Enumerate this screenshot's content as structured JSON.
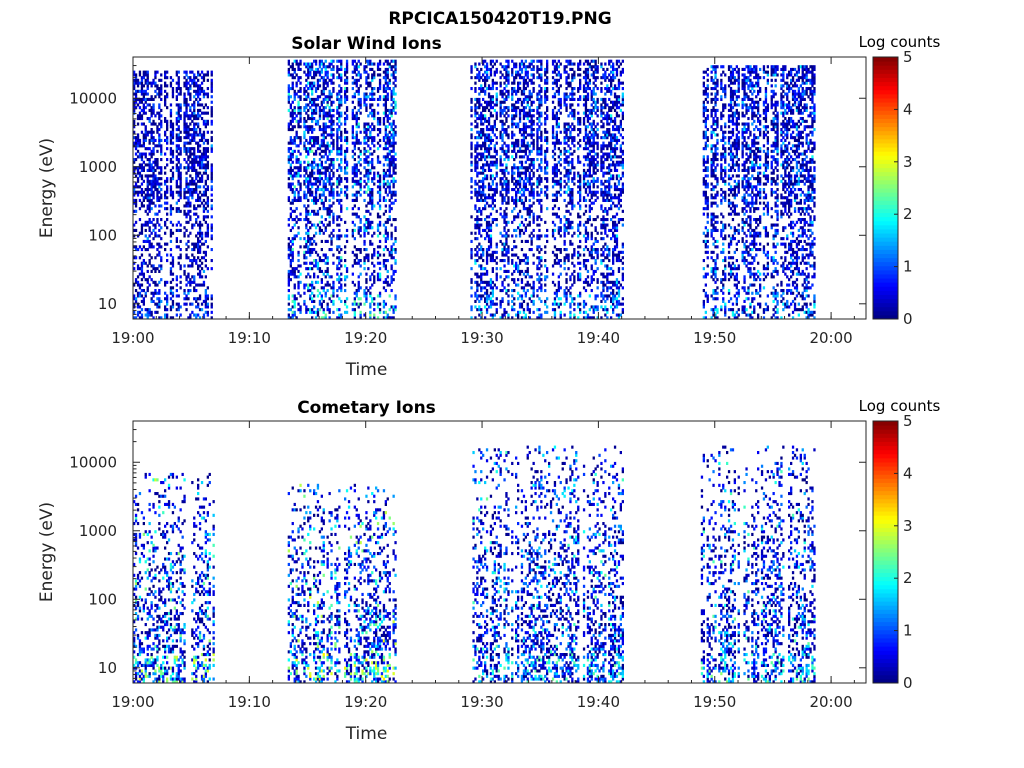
{
  "figure": {
    "title": "RPCICA150420T19.PNG"
  },
  "chart_data": [
    {
      "type": "heatmap",
      "title": "Solar Wind Ions",
      "xlabel": "Time",
      "ylabel": "Energy (eV)",
      "x_ticks": [
        "19:00",
        "19:10",
        "19:20",
        "19:30",
        "19:40",
        "19:50",
        "20:00"
      ],
      "xlim_minutes": [
        0,
        63
      ],
      "y_scale": "log",
      "ylim": [
        6,
        40000
      ],
      "y_ticks": [
        10,
        100,
        1000,
        10000
      ],
      "y_tick_labels": [
        "10",
        "100",
        "1000",
        "10000"
      ],
      "colorbar": {
        "label": "Log counts",
        "range": [
          0,
          5
        ],
        "ticks": [
          "0",
          "1",
          "2",
          "3",
          "4",
          "5"
        ]
      },
      "bursts": [
        {
          "start_min": 0.0,
          "end_min": 6.8,
          "e_min": 6,
          "e_max": 25000,
          "max_log_count": 1.5
        },
        {
          "start_min": 13.3,
          "end_min": 22.5,
          "e_min": 6,
          "e_max": 35000,
          "max_log_count": 2.5
        },
        {
          "start_min": 29.0,
          "end_min": 42.0,
          "e_min": 6,
          "e_max": 35000,
          "max_log_count": 2.0
        },
        {
          "start_min": 48.8,
          "end_min": 58.5,
          "e_min": 6,
          "e_max": 30000,
          "max_log_count": 2.0
        }
      ]
    },
    {
      "type": "heatmap",
      "title": "Cometary Ions",
      "xlabel": "Time",
      "ylabel": "Energy (eV)",
      "x_ticks": [
        "19:00",
        "19:10",
        "19:20",
        "19:30",
        "19:40",
        "19:50",
        "20:00"
      ],
      "xlim_minutes": [
        0,
        63
      ],
      "y_scale": "log",
      "ylim": [
        6,
        40000
      ],
      "y_ticks": [
        10,
        100,
        1000,
        10000
      ],
      "y_tick_labels": [
        "10",
        "100",
        "1000",
        "10000"
      ],
      "colorbar": {
        "label": "Log counts",
        "range": [
          0,
          5
        ],
        "ticks": [
          "0",
          "1",
          "2",
          "3",
          "4",
          "5"
        ]
      },
      "bursts": [
        {
          "start_min": 0.0,
          "end_min": 7.0,
          "e_min": 6,
          "e_max": 7000,
          "max_log_count": 3.0
        },
        {
          "start_min": 13.3,
          "end_min": 22.5,
          "e_min": 6,
          "e_max": 5000,
          "max_log_count": 3.2
        },
        {
          "start_min": 29.0,
          "end_min": 42.0,
          "e_min": 6,
          "e_max": 17000,
          "max_log_count": 2.5
        },
        {
          "start_min": 48.8,
          "end_min": 58.5,
          "e_min": 6,
          "e_max": 18000,
          "max_log_count": 2.6
        }
      ]
    }
  ]
}
